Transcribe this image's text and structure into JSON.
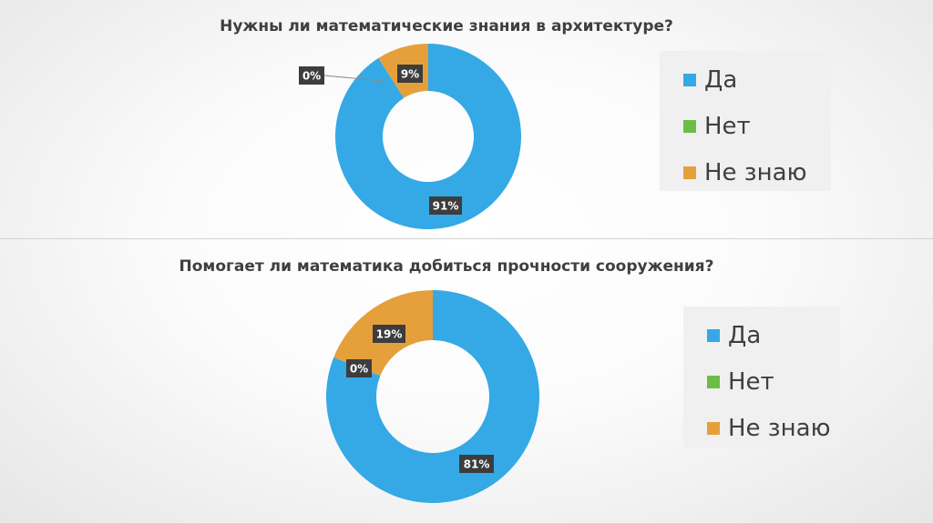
{
  "chart_data": [
    {
      "type": "pie",
      "title": "Нужны ли математические знания в архитектуре?",
      "categories": [
        "Да",
        "Нет",
        "Не знаю"
      ],
      "values": [
        91,
        0,
        9
      ],
      "value_labels": [
        "91%",
        "0%",
        "9%"
      ],
      "colors": [
        "#34a9e6",
        "#6cbd45",
        "#e5a03c"
      ],
      "legend": "right",
      "style": "donut"
    },
    {
      "type": "pie",
      "title": "Помогает ли математика добиться прочности сооружения?",
      "categories": [
        "Да",
        "Нет",
        "Не знаю"
      ],
      "values": [
        81,
        0,
        19
      ],
      "value_labels": [
        "81%",
        "0%",
        "19%"
      ],
      "colors": [
        "#34a9e6",
        "#6cbd45",
        "#e5a03c"
      ],
      "legend": "right",
      "style": "donut"
    }
  ]
}
